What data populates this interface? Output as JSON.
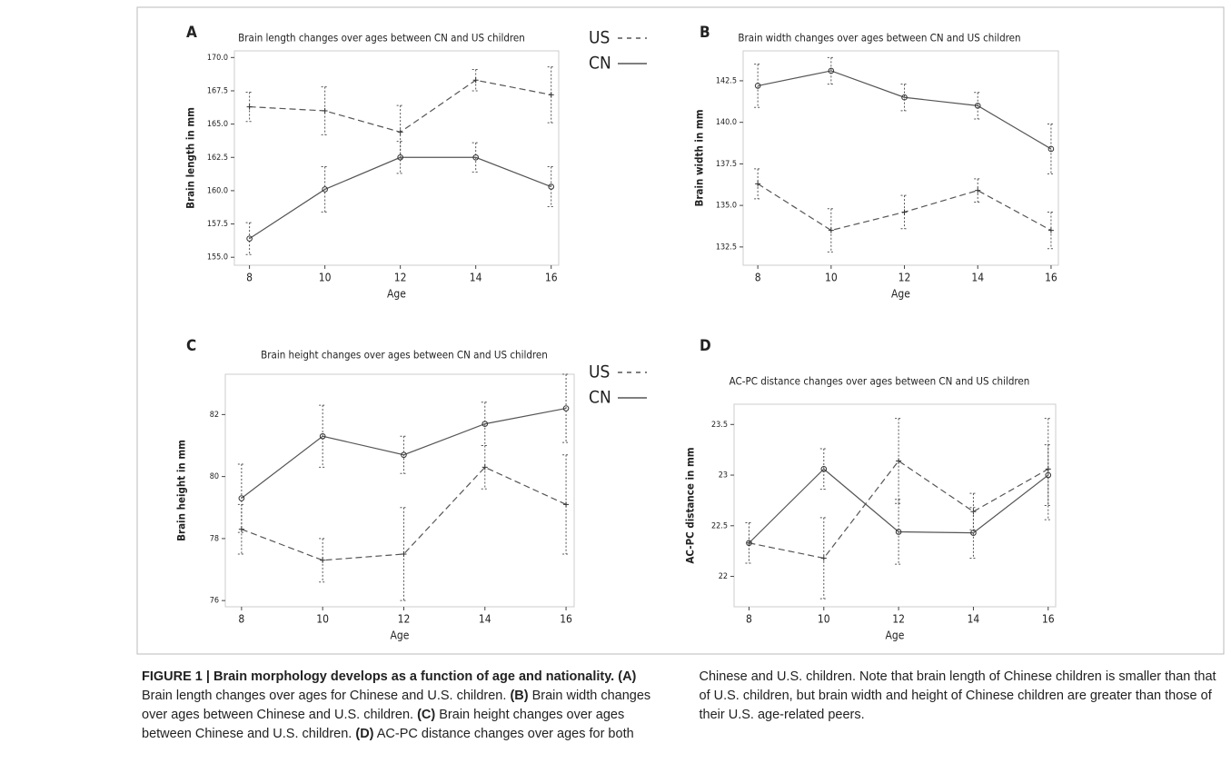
{
  "chart_data": [
    {
      "type": "line",
      "label": "A",
      "title": "Brain length changes over ages between CN and US children",
      "x_label": "Age",
      "y_label": "Brain length in mm",
      "x": [
        8,
        10,
        12,
        14,
        16
      ],
      "xlim": [
        7.6,
        16.2
      ],
      "xticks": [
        8,
        10,
        12,
        14,
        16
      ],
      "ylim": [
        154.4,
        170.5
      ],
      "yticks": [
        {
          "value": 155,
          "label": "155.0"
        },
        {
          "value": 157.5,
          "label": "157.5"
        },
        {
          "value": 160,
          "label": "160.0"
        },
        {
          "value": 162.5,
          "label": "162.5"
        },
        {
          "value": 165,
          "label": "165.0"
        },
        {
          "value": 167.5,
          "label": "167.5"
        },
        {
          "value": 170,
          "label": "170.0"
        }
      ],
      "series": [
        {
          "name": "US",
          "color": "#555555",
          "line_style": "dashed",
          "marker": "plus",
          "values": [
            166.3,
            166.0,
            164.4,
            168.3,
            167.2
          ],
          "errors": [
            1.1,
            1.8,
            2.0,
            0.8,
            2.1
          ]
        },
        {
          "name": "CN",
          "color": "#555555",
          "line_style": "solid",
          "marker": "circle",
          "values": [
            156.4,
            160.1,
            162.5,
            162.5,
            160.3
          ],
          "errors": [
            1.2,
            1.7,
            1.2,
            1.1,
            1.5
          ]
        }
      ]
    },
    {
      "type": "line",
      "label": "B",
      "title": "Brain width changes over ages between CN and US children",
      "x_label": "Age",
      "y_label": "Brain width in mm",
      "x": [
        8,
        10,
        12,
        14,
        16
      ],
      "xlim": [
        7.6,
        16.2
      ],
      "xticks": [
        8,
        10,
        12,
        14,
        16
      ],
      "ylim": [
        131.4,
        144.3
      ],
      "yticks": [
        {
          "value": 132.5,
          "label": "132.5"
        },
        {
          "value": 135,
          "label": "135.0"
        },
        {
          "value": 137.5,
          "label": "137.5"
        },
        {
          "value": 140,
          "label": "140.0"
        },
        {
          "value": 142.5,
          "label": "142.5"
        }
      ],
      "series": [
        {
          "name": "US",
          "color": "#555555",
          "line_style": "dashed",
          "marker": "plus",
          "values": [
            136.3,
            133.5,
            134.6,
            135.9,
            133.5
          ],
          "errors": [
            0.9,
            1.3,
            1.0,
            0.7,
            1.1
          ]
        },
        {
          "name": "CN",
          "color": "#555555",
          "line_style": "solid",
          "marker": "circle",
          "values": [
            142.2,
            143.1,
            141.5,
            141.0,
            138.4
          ],
          "errors": [
            1.3,
            0.8,
            0.8,
            0.8,
            1.5
          ]
        }
      ]
    },
    {
      "type": "line",
      "label": "C",
      "title": "Brain height changes over ages between CN and US children",
      "x_label": "Age",
      "y_label": "Brain height in mm",
      "x": [
        8,
        10,
        12,
        14,
        16
      ],
      "xlim": [
        7.6,
        16.2
      ],
      "xticks": [
        8,
        10,
        12,
        14,
        16
      ],
      "ylim": [
        75.8,
        83.3
      ],
      "yticks": [
        76,
        78,
        80,
        82
      ],
      "series": [
        {
          "name": "US",
          "color": "#555555",
          "line_style": "dashed",
          "marker": "plus",
          "values": [
            78.3,
            77.3,
            77.5,
            80.3,
            79.1
          ],
          "errors": [
            0.8,
            0.7,
            1.5,
            0.7,
            1.6
          ]
        },
        {
          "name": "CN",
          "color": "#555555",
          "line_style": "solid",
          "marker": "circle",
          "values": [
            79.3,
            81.3,
            80.7,
            81.7,
            82.2
          ],
          "errors": [
            1.1,
            1.0,
            0.6,
            0.7,
            1.1
          ]
        }
      ]
    },
    {
      "type": "line",
      "label": "D",
      "title": "AC-PC distance changes over ages between CN and US children",
      "x_label": "Age",
      "y_label": "AC-PC distance in mm",
      "x": [
        8,
        10,
        12,
        14,
        16
      ],
      "xlim": [
        7.6,
        16.2
      ],
      "xticks": [
        8,
        10,
        12,
        14,
        16
      ],
      "ylim": [
        21.7,
        23.7
      ],
      "yticks": [
        22,
        22.5,
        23,
        23.5
      ],
      "series": [
        {
          "name": "US",
          "color": "#555555",
          "line_style": "dashed",
          "marker": "plus",
          "values": [
            22.33,
            22.18,
            23.14,
            22.64,
            23.06
          ],
          "errors": [
            0.2,
            0.4,
            0.42,
            0.18,
            0.5
          ]
        },
        {
          "name": "CN",
          "color": "#555555",
          "line_style": "solid",
          "marker": "circle",
          "values": [
            22.33,
            23.06,
            22.44,
            22.43,
            23.0
          ],
          "errors": [
            0.2,
            0.2,
            0.32,
            0.25,
            0.3
          ]
        }
      ]
    }
  ],
  "caption": {
    "heading": "FIGURE 1 | Brain morphology develops as a function of age and nationality.",
    "items": [
      {
        "tag": "(A)",
        "text": "Brain length changes over ages for Chinese and U.S. children."
      },
      {
        "tag": "(B)",
        "text": "Brain width changes over ages between Chinese and U.S. children."
      },
      {
        "tag": "(C)",
        "text": "Brain height changes over ages between Chinese and U.S. children."
      },
      {
        "tag": "(D)",
        "text": "AC-PC distance changes over ages for both Chinese and U.S. children."
      }
    ],
    "note": "Note that brain length of Chinese children is smaller than that of U.S. children, but brain width and height of Chinese children are greater than those of their U.S. age-related peers."
  }
}
